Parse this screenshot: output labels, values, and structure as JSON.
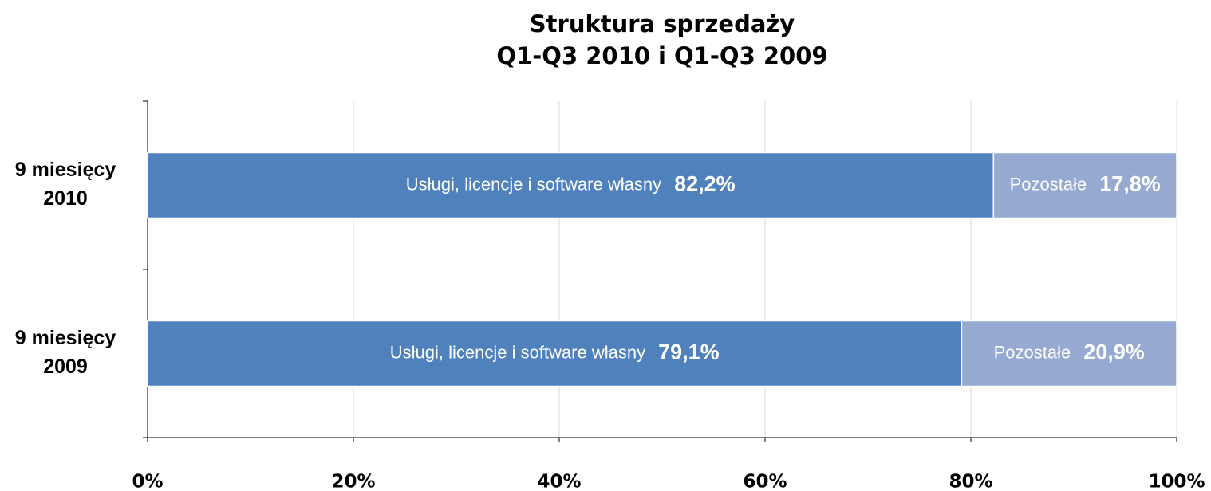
{
  "chart_data": {
    "type": "stacked-bar-horizontal",
    "title": [
      "Struktura sprzedaży",
      "Q1-Q3 2010 i Q1-Q3 2009"
    ],
    "categories": [
      [
        "9 miesięcy",
        "2010"
      ],
      [
        "9 miesięcy",
        "2009"
      ]
    ],
    "series": [
      {
        "name": "Usługi, licencje i software własny",
        "color": "#4f81bd",
        "values": [
          82.2,
          79.1
        ],
        "value_labels": [
          "82,2%",
          "79,1%"
        ]
      },
      {
        "name": "Pozostałe",
        "color": "#95a9d1",
        "values": [
          17.8,
          20.9
        ],
        "value_labels": [
          "17,8%",
          "20,9%"
        ]
      }
    ],
    "xlim": [
      0,
      100
    ],
    "xticks": [
      {
        "value": 0,
        "label": "0%"
      },
      {
        "value": 20,
        "label": "20%"
      },
      {
        "value": 40,
        "label": "40%"
      },
      {
        "value": 60,
        "label": "60%"
      },
      {
        "value": 80,
        "label": "80%"
      },
      {
        "value": 100,
        "label": "100%"
      }
    ],
    "grid": true
  }
}
